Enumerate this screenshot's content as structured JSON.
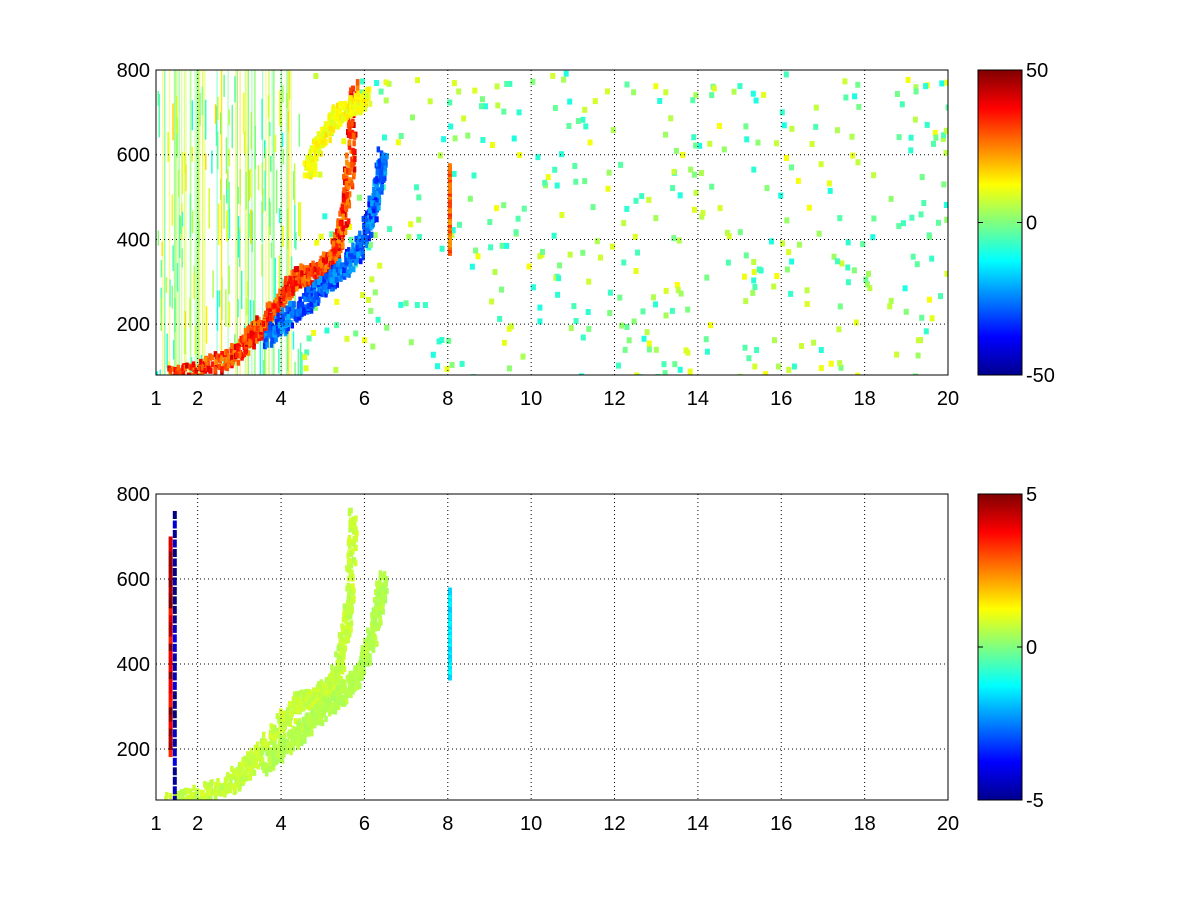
{
  "chart_data": [
    {
      "type": "heatmap",
      "title": "",
      "xlabel": "",
      "ylabel": "",
      "xlim": [
        1,
        20
      ],
      "ylim": [
        80,
        800
      ],
      "xticks": [
        1,
        2,
        4,
        6,
        8,
        10,
        12,
        14,
        16,
        18,
        20
      ],
      "yticks": [
        200,
        400,
        600,
        800
      ],
      "grid": true,
      "colormap": "jet",
      "colorbar": {
        "limits": [
          -50,
          50
        ],
        "ticks": [
          -50,
          0,
          50
        ]
      },
      "features": [
        {
          "name": "positive-ridge",
          "x": [
            1.3,
            2.0,
            2.8,
            3.2,
            3.5,
            4.0,
            4.4,
            4.8,
            5.2,
            5.4,
            5.6,
            5.7
          ],
          "y": [
            80,
            95,
            130,
            170,
            205,
            270,
            320,
            325,
            360,
            420,
            560,
            760
          ],
          "value": 38
        },
        {
          "name": "negative-ridge",
          "x": [
            3.6,
            4.1,
            4.6,
            5.0,
            5.4,
            5.8,
            6.1,
            6.3,
            6.4
          ],
          "y": [
            170,
            220,
            260,
            300,
            330,
            380,
            450,
            540,
            600
          ],
          "value": -33
        },
        {
          "name": "upper-positive-band",
          "x": [
            4.6,
            4.9,
            5.3,
            5.7,
            6.0
          ],
          "y": [
            560,
            640,
            700,
            720,
            740
          ],
          "value": 14
        },
        {
          "name": "spike-x8",
          "x": [
            8.05,
            8.05
          ],
          "y": [
            380,
            580
          ],
          "value": 28
        }
      ]
    },
    {
      "type": "heatmap",
      "title": "",
      "xlabel": "",
      "ylabel": "",
      "xlim": [
        1,
        20
      ],
      "ylim": [
        80,
        800
      ],
      "xticks": [
        1,
        2,
        4,
        6,
        8,
        10,
        12,
        14,
        16,
        18,
        20
      ],
      "yticks": [
        200,
        400,
        600,
        800
      ],
      "grid": true,
      "colormap": "jet",
      "colorbar": {
        "limits": [
          -5,
          5
        ],
        "ticks": [
          -5,
          0,
          5
        ]
      },
      "features": [
        {
          "name": "main-ridge",
          "x": [
            1.3,
            2.0,
            2.8,
            3.2,
            3.5,
            4.0,
            4.4,
            4.8,
            5.2,
            5.4,
            5.6,
            5.7
          ],
          "y": [
            80,
            95,
            130,
            170,
            205,
            270,
            320,
            325,
            360,
            420,
            560,
            760
          ],
          "value": 0.8
        },
        {
          "name": "second-ridge",
          "x": [
            3.6,
            4.1,
            4.6,
            5.0,
            5.4,
            5.8,
            6.1,
            6.3,
            6.4
          ],
          "y": [
            170,
            220,
            260,
            300,
            330,
            380,
            450,
            540,
            600
          ],
          "value": 0.6
        },
        {
          "name": "spike-x8",
          "x": [
            8.05,
            8.05
          ],
          "y": [
            380,
            580
          ],
          "value": -1.5
        },
        {
          "name": "edge-column-low",
          "x": [
            1.45,
            1.45
          ],
          "y": [
            90,
            760
          ],
          "value": -4.6
        },
        {
          "name": "edge-column-high",
          "x": [
            1.35,
            1.35
          ],
          "y": [
            200,
            700
          ],
          "value": 4.2
        }
      ]
    }
  ]
}
